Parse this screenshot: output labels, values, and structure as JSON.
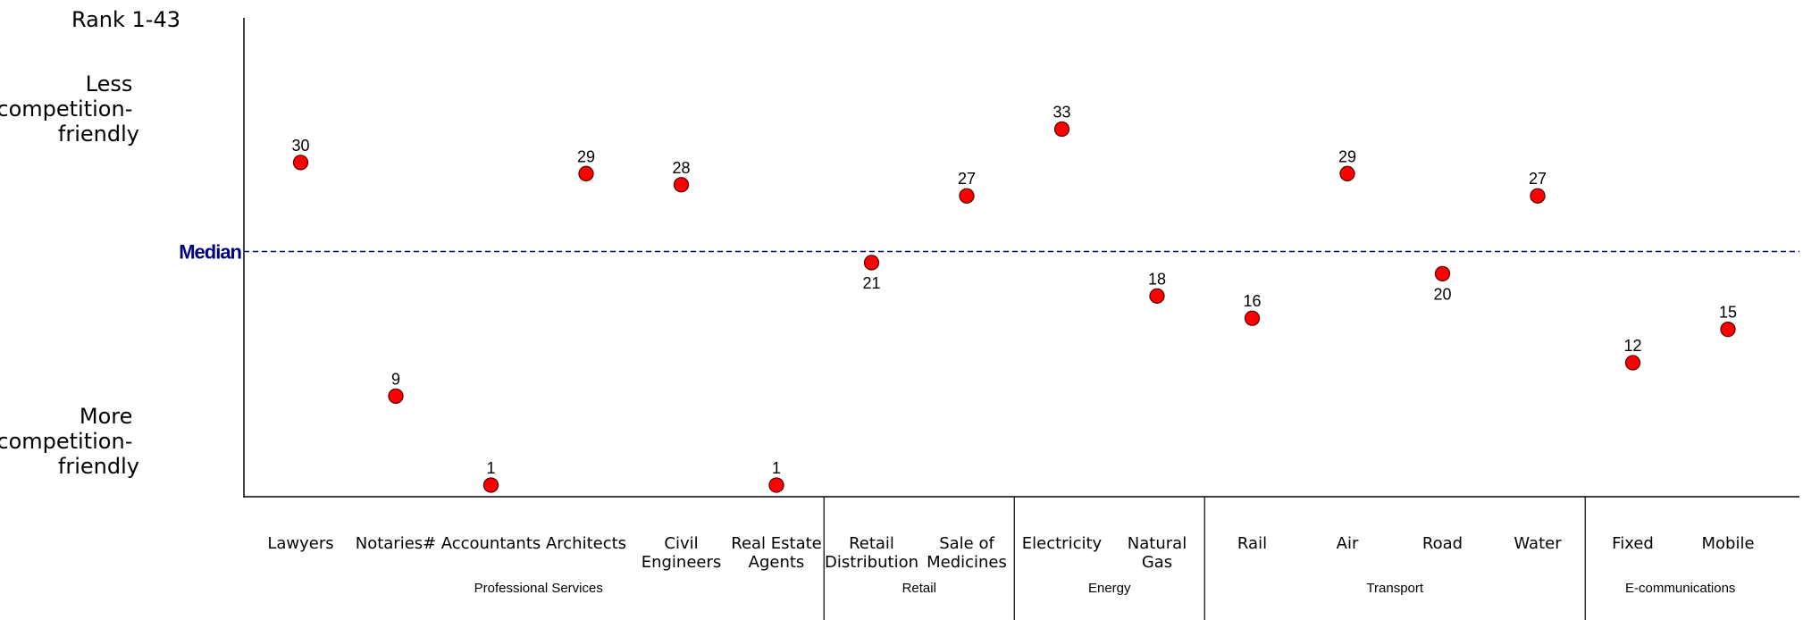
{
  "chart_data": {
    "type": "scatter",
    "y_title": "Rank 1-43",
    "y_top_label": [
      "Less",
      "competition-",
      "friendly"
    ],
    "y_bottom_label": [
      "More",
      "competition-",
      "friendly"
    ],
    "median_label": "Median",
    "median_value": 22,
    "ylim": [
      1,
      43
    ],
    "y_inverted": true,
    "grid": false,
    "marker_color": "#ff0000",
    "median_color": "#00007f",
    "categories": [
      {
        "label": [
          "Lawyers"
        ],
        "value": 30,
        "label_pos": "above"
      },
      {
        "label": [
          "Notaries#"
        ],
        "value": 9,
        "label_pos": "above"
      },
      {
        "label": [
          "Accountants"
        ],
        "value": 1,
        "label_pos": "above"
      },
      {
        "label": [
          "Architects"
        ],
        "value": 29,
        "label_pos": "above"
      },
      {
        "label": [
          "Civil",
          "Engineers"
        ],
        "value": 28,
        "label_pos": "above"
      },
      {
        "label": [
          "Real Estate",
          "Agents"
        ],
        "value": 1,
        "label_pos": "above"
      },
      {
        "label": [
          "Retail",
          "Distribution"
        ],
        "value": 21,
        "label_pos": "below"
      },
      {
        "label": [
          "Sale of",
          "Medicines"
        ],
        "value": 27,
        "label_pos": "above"
      },
      {
        "label": [
          "Electricity"
        ],
        "value": 33,
        "label_pos": "above"
      },
      {
        "label": [
          "Natural",
          "Gas"
        ],
        "value": 18,
        "label_pos": "above"
      },
      {
        "label": [
          "Rail"
        ],
        "value": 16,
        "label_pos": "above"
      },
      {
        "label": [
          "Air"
        ],
        "value": 29,
        "label_pos": "above"
      },
      {
        "label": [
          "Road"
        ],
        "value": 20,
        "label_pos": "below"
      },
      {
        "label": [
          "Water"
        ],
        "value": 27,
        "label_pos": "above"
      },
      {
        "label": [
          "Fixed"
        ],
        "value": 12,
        "label_pos": "above"
      },
      {
        "label": [
          "Mobile"
        ],
        "value": 15,
        "label_pos": "above"
      }
    ],
    "groups": [
      {
        "name": "Professional Services",
        "start": 0,
        "end": 5
      },
      {
        "name": "Retail",
        "start": 6,
        "end": 7
      },
      {
        "name": "Energy",
        "start": 8,
        "end": 9
      },
      {
        "name": "Transport",
        "start": 10,
        "end": 13
      },
      {
        "name": "E-communications",
        "start": 14,
        "end": 15
      }
    ]
  }
}
